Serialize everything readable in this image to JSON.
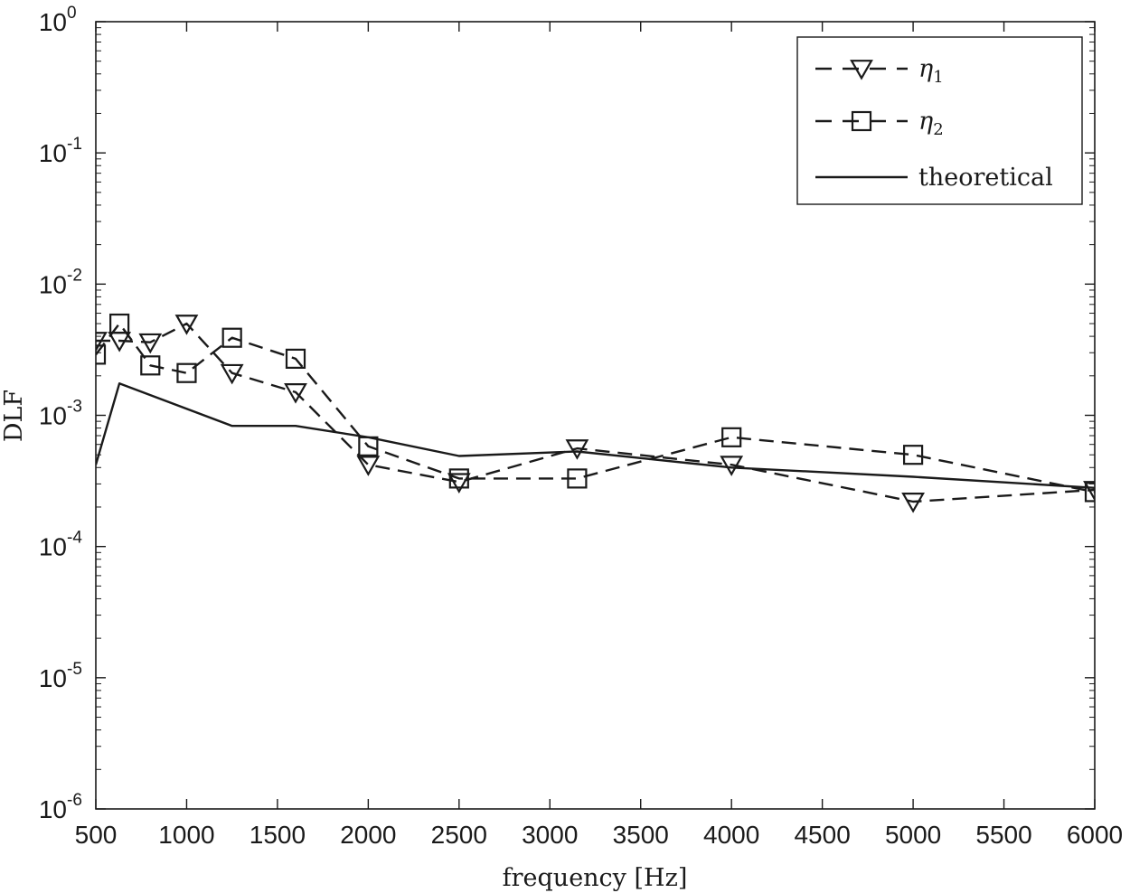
{
  "chart_data": {
    "type": "line",
    "xlabel": "frequency [Hz]",
    "ylabel": "DLF",
    "xscale": "linear",
    "yscale": "log",
    "xlim": [
      500,
      6000
    ],
    "ylim": [
      1e-06,
      1
    ],
    "x_ticks": [
      500,
      1000,
      1500,
      2000,
      2500,
      3000,
      3500,
      4000,
      4500,
      5000,
      5500,
      6000
    ],
    "x_tick_labels": [
      "500",
      "1000",
      "1500",
      "2000",
      "2500",
      "3000",
      "3500",
      "4000",
      "4500",
      "5000",
      "5500",
      "6000"
    ],
    "y_ticks": [
      {
        "base": "10",
        "exp": "0",
        "value": 1
      },
      {
        "base": "10",
        "exp": "-1",
        "value": 0.1
      },
      {
        "base": "10",
        "exp": "-2",
        "value": 0.01
      },
      {
        "base": "10",
        "exp": "-3",
        "value": 0.001
      },
      {
        "base": "10",
        "exp": "-4",
        "value": 0.0001
      },
      {
        "base": "10",
        "exp": "-5",
        "value": 1e-05
      },
      {
        "base": "10",
        "exp": "-6",
        "value": 1e-06
      }
    ],
    "grid": false,
    "legend_position": "top-right",
    "series": [
      {
        "name_symbol": "η",
        "name_sub": "1",
        "style": "dashed",
        "marker": "triangle-down",
        "color": "#1a1a1a",
        "x": [
          500,
          630,
          800,
          1000,
          1250,
          1600,
          2000,
          2500,
          3150,
          4000,
          5000,
          6000
        ],
        "y": [
          0.0037,
          0.0037,
          0.0036,
          0.005,
          0.0021,
          0.0015,
          0.00042,
          0.00031,
          0.00056,
          0.00042,
          0.00022,
          0.00027
        ]
      },
      {
        "name_symbol": "η",
        "name_sub": "2",
        "style": "dashed",
        "marker": "square",
        "color": "#1a1a1a",
        "x": [
          500,
          630,
          800,
          1000,
          1250,
          1600,
          2000,
          2500,
          3150,
          4000,
          5000,
          6000
        ],
        "y": [
          0.0029,
          0.005,
          0.0024,
          0.0021,
          0.0039,
          0.0027,
          0.00058,
          0.00033,
          0.00033,
          0.00068,
          0.0005,
          0.00026
        ]
      },
      {
        "name": "theoretical",
        "style": "solid",
        "marker": "none",
        "color": "#1a1a1a",
        "x": [
          500,
          630,
          1250,
          1600,
          2000,
          2500,
          3150,
          4000,
          5000,
          6000
        ],
        "y": [
          0.00042,
          0.00175,
          0.00083,
          0.00083,
          0.00068,
          0.00049,
          0.00053,
          0.0004,
          0.00034,
          0.00028
        ]
      }
    ]
  }
}
